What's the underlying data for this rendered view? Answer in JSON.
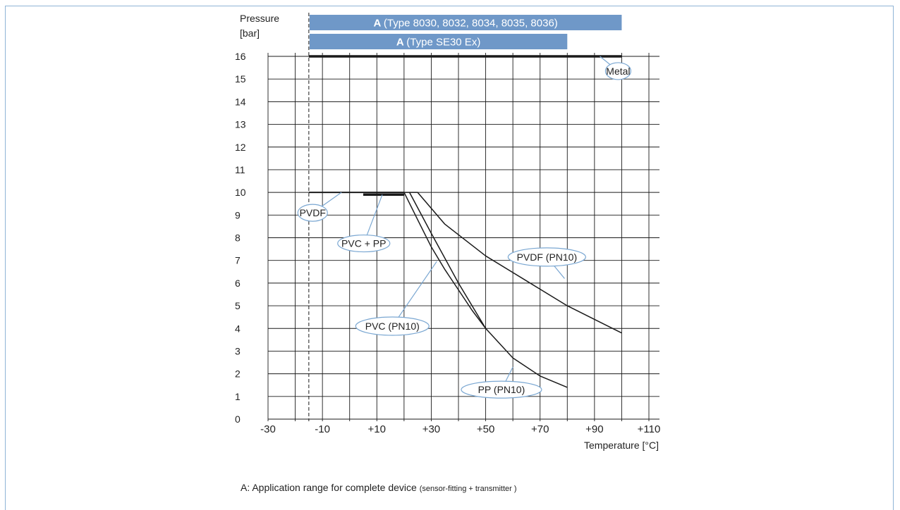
{
  "chart_data": {
    "type": "line",
    "ylabel": [
      "Pressure",
      "[bar]"
    ],
    "xlabel": "Temperature [°C]",
    "xlim": [
      -30,
      110
    ],
    "ylim": [
      0,
      16
    ],
    "x_tick_labels": [
      {
        "value": -30,
        "label": "-30"
      },
      {
        "value": -10,
        "label": "-10"
      },
      {
        "value": 10,
        "label": "+10"
      },
      {
        "value": 30,
        "label": "+30"
      },
      {
        "value": 50,
        "label": "+50"
      },
      {
        "value": 70,
        "label": "+70"
      },
      {
        "value": 90,
        "label": "+90"
      },
      {
        "value": 110,
        "label": "+110"
      }
    ],
    "y_ticks": [
      0,
      1,
      2,
      3,
      4,
      5,
      6,
      7,
      8,
      9,
      10,
      11,
      12,
      13,
      14,
      15,
      16
    ],
    "grid": true,
    "grid_step_x": 10,
    "reference_line": {
      "x": -15,
      "style": "dashed"
    },
    "bands": [
      {
        "bold": "A",
        "label": "(Type 8030, 8032, 8034, 8035, 8036)",
        "x_start": -15,
        "x_end": 100,
        "color": "#6f98c8"
      },
      {
        "bold": "A",
        "label": "(Type SE30 Ex)",
        "x_start": -15,
        "x_end": 80,
        "color": "#6f98c8"
      }
    ],
    "series": [
      {
        "name": "Metal",
        "points": [
          [
            -15,
            16
          ],
          [
            100,
            16
          ]
        ],
        "width": 3.5
      },
      {
        "name": "PVDF",
        "points": [
          [
            -15,
            10
          ],
          [
            20,
            10
          ]
        ],
        "width": 2
      },
      {
        "name": "PVC + PP",
        "points": [
          [
            5,
            9.9
          ],
          [
            20,
            9.9
          ]
        ],
        "width": 3.5
      },
      {
        "name": "PVDF (PN10)",
        "points": [
          [
            20,
            10
          ],
          [
            25,
            10
          ],
          [
            35,
            8.6
          ],
          [
            50,
            7.2
          ],
          [
            65,
            6.1
          ],
          [
            80,
            5
          ],
          [
            90,
            4.4
          ],
          [
            100,
            3.8
          ]
        ],
        "width": 1.5
      },
      {
        "name": "PVC (PN10)",
        "points": [
          [
            20,
            10
          ],
          [
            25,
            8.8
          ],
          [
            30,
            7.6
          ],
          [
            35,
            6.6
          ],
          [
            40,
            5.7
          ],
          [
            45,
            4.8
          ],
          [
            50,
            4
          ]
        ],
        "width": 1.5
      },
      {
        "name": "PP (PN10)",
        "points": [
          [
            22,
            10
          ],
          [
            30,
            8.2
          ],
          [
            40,
            6
          ],
          [
            50,
            4
          ],
          [
            60,
            2.7
          ],
          [
            70,
            1.9
          ],
          [
            80,
            1.4
          ]
        ],
        "width": 1.5
      }
    ],
    "annotations": [
      {
        "text": "Metal",
        "cx": 98.7,
        "cy": 15.35,
        "rx": 18,
        "ry": 12,
        "leader_to": [
          92,
          16
        ]
      },
      {
        "text": "PVDF",
        "cx": -13.6,
        "cy": 9.1,
        "rx": 21,
        "ry": 12,
        "leader_to": [
          -3,
          10
        ]
      },
      {
        "text": "PVC + PP",
        "cx": 5.2,
        "cy": 7.75,
        "rx": 37,
        "ry": 12,
        "leader_to": [
          12,
          9.9
        ]
      },
      {
        "text": "PVDF (PN10)",
        "cx": 72.5,
        "cy": 7.15,
        "rx": 55,
        "ry": 13,
        "leader_to": [
          79,
          6.2
        ]
      },
      {
        "text": "PVC (PN10)",
        "cx": 15.7,
        "cy": 4.1,
        "rx": 52,
        "ry": 13,
        "leader_to": [
          32,
          6.95
        ]
      },
      {
        "text": "PP (PN10)",
        "cx": 55.8,
        "cy": 1.3,
        "rx": 57,
        "ry": 12,
        "leader_to": [
          60,
          2.3
        ]
      }
    ]
  },
  "footnote": {
    "main": "A: Application range for complete device ",
    "detail": "(sensor-fitting + transmitter )"
  },
  "colors": {
    "band": "#6f98c8",
    "annotation_stroke": "#7aa7d2",
    "frame": "#8fb4d6"
  }
}
